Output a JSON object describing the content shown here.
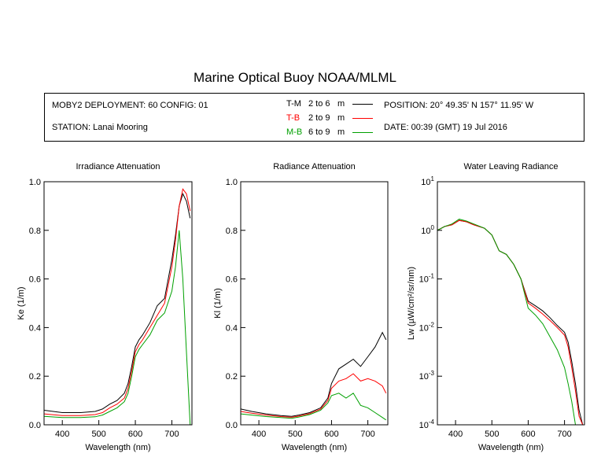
{
  "header": {
    "title": "Marine Optical Buoy NOAA/MLML"
  },
  "info": {
    "deployment": "MOBY2 DEPLOYMENT: 60 CONFIG: 01",
    "station": "STATION: Lanai Mooring",
    "position": "POSITION: 20° 49.35' N   157° 11.95' W",
    "date": "DATE: 00:39 (GMT) 19 Jul 2016",
    "legend": [
      {
        "code": "T-M",
        "range": "2 to 6",
        "unit": "m",
        "color": "#000000"
      },
      {
        "code": "T-B",
        "range": "2 to 9",
        "unit": "m",
        "color": "#ff0000"
      },
      {
        "code": "M-B",
        "range": "6 to 9",
        "unit": "m",
        "color": "#00a000"
      }
    ]
  },
  "chart_data": [
    {
      "type": "line",
      "title": "Irradiance Attenuation",
      "xlabel": "Wavelength (nm)",
      "ylabel": "Ke  (1/m)",
      "xlim": [
        350,
        755
      ],
      "ylim": [
        0,
        1.0
      ],
      "xticks": [
        "400",
        "500",
        "600",
        "700"
      ],
      "yticks": [
        "0.0",
        "0.2",
        "0.4",
        "0.6",
        "0.8",
        "1.0"
      ],
      "x": [
        350,
        400,
        450,
        490,
        510,
        530,
        550,
        570,
        580,
        590,
        600,
        610,
        620,
        640,
        660,
        680,
        700,
        710,
        720,
        730,
        740,
        750
      ],
      "series": [
        {
          "name": "T-M",
          "color": "#000000",
          "values": [
            0.06,
            0.05,
            0.05,
            0.055,
            0.065,
            0.085,
            0.1,
            0.13,
            0.17,
            0.24,
            0.32,
            0.35,
            0.37,
            0.42,
            0.49,
            0.52,
            0.68,
            0.78,
            0.9,
            0.95,
            0.92,
            0.85
          ]
        },
        {
          "name": "T-B",
          "color": "#ff0000",
          "values": [
            0.045,
            0.038,
            0.038,
            0.042,
            0.05,
            0.07,
            0.085,
            0.11,
            0.15,
            0.22,
            0.3,
            0.33,
            0.35,
            0.4,
            0.45,
            0.5,
            0.65,
            0.76,
            0.9,
            0.97,
            0.95,
            0.88
          ]
        },
        {
          "name": "M-B",
          "color": "#00a000",
          "values": [
            0.035,
            0.03,
            0.03,
            0.033,
            0.04,
            0.055,
            0.07,
            0.095,
            0.13,
            0.2,
            0.28,
            0.31,
            0.33,
            0.37,
            0.43,
            0.46,
            0.55,
            0.65,
            0.8,
            0.6,
            0.3,
            0.0
          ]
        }
      ]
    },
    {
      "type": "line",
      "title": "Radiance Attenuation",
      "xlabel": "Wavelength (nm)",
      "ylabel": "Kl  (1/m)",
      "xlim": [
        350,
        755
      ],
      "ylim": [
        0,
        1.0
      ],
      "xticks": [
        "400",
        "500",
        "600",
        "700"
      ],
      "yticks": [
        "0.0",
        "0.2",
        "0.4",
        "0.6",
        "0.8",
        "1.0"
      ],
      "x": [
        350,
        380,
        420,
        460,
        490,
        510,
        540,
        570,
        590,
        600,
        620,
        640,
        660,
        680,
        700,
        720,
        740,
        750
      ],
      "series": [
        {
          "name": "T-M",
          "color": "#000000",
          "values": [
            0.065,
            0.055,
            0.045,
            0.038,
            0.035,
            0.04,
            0.05,
            0.07,
            0.11,
            0.17,
            0.23,
            0.25,
            0.27,
            0.24,
            0.28,
            0.32,
            0.38,
            0.35
          ]
        },
        {
          "name": "T-B",
          "color": "#ff0000",
          "values": [
            0.055,
            0.048,
            0.04,
            0.034,
            0.031,
            0.036,
            0.046,
            0.065,
            0.1,
            0.15,
            0.18,
            0.19,
            0.21,
            0.18,
            0.19,
            0.18,
            0.16,
            0.13
          ]
        },
        {
          "name": "M-B",
          "color": "#00a000",
          "values": [
            0.045,
            0.04,
            0.034,
            0.03,
            0.027,
            0.032,
            0.042,
            0.06,
            0.09,
            0.12,
            0.13,
            0.11,
            0.13,
            0.08,
            0.07,
            0.05,
            0.03,
            0.02
          ]
        }
      ]
    },
    {
      "type": "line",
      "title": "Water Leaving Radiance",
      "xlabel": "Wavelength (nm)",
      "ylabel": "Lw  (µW/cm²/sr/nm)",
      "yscale": "log",
      "xlim": [
        350,
        755
      ],
      "ylim": [
        0.0001,
        10
      ],
      "xticks": [
        "400",
        "500",
        "600",
        "700"
      ],
      "yticks": [
        "10^-4",
        "10^-3",
        "10^-2",
        "10^-1",
        "10^0",
        "10^1"
      ],
      "x": [
        350,
        370,
        390,
        410,
        430,
        450,
        480,
        500,
        520,
        540,
        560,
        580,
        600,
        620,
        640,
        660,
        680,
        700,
        710,
        720,
        730,
        740,
        750
      ],
      "series": [
        {
          "name": "T-M",
          "color": "#000000",
          "values": [
            1.0,
            1.2,
            1.3,
            1.6,
            1.5,
            1.3,
            1.1,
            0.8,
            0.38,
            0.32,
            0.2,
            0.1,
            0.035,
            0.028,
            0.022,
            0.016,
            0.011,
            0.008,
            0.005,
            0.002,
            0.0007,
            0.0002,
            0.0001
          ]
        },
        {
          "name": "T-B",
          "color": "#ff0000",
          "values": [
            1.0,
            1.2,
            1.3,
            1.6,
            1.5,
            1.3,
            1.1,
            0.8,
            0.38,
            0.32,
            0.2,
            0.1,
            0.032,
            0.025,
            0.019,
            0.014,
            0.01,
            0.007,
            0.004,
            0.0015,
            0.0005,
            0.00015,
            0.0001
          ]
        },
        {
          "name": "M-B",
          "color": "#00a000",
          "values": [
            1.0,
            1.2,
            1.35,
            1.7,
            1.55,
            1.35,
            1.1,
            0.8,
            0.38,
            0.32,
            0.2,
            0.1,
            0.025,
            0.018,
            0.012,
            0.0065,
            0.0035,
            0.0015,
            0.0007,
            0.0003,
            0.0001,
            0.0001,
            0.0001
          ]
        }
      ]
    }
  ]
}
